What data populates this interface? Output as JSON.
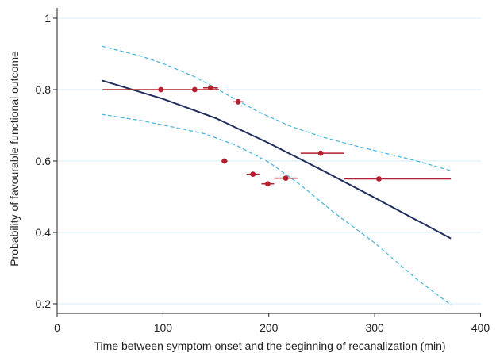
{
  "chart_data": {
    "type": "line",
    "xlabel": "Time between symptom onset and the beginning of recanalization (min)",
    "ylabel": "Probability of favourable functional outcome",
    "xlim": [
      0,
      410
    ],
    "ylim": [
      0.18,
      1.02
    ],
    "x_ticks": [
      0,
      100,
      200,
      300,
      400
    ],
    "y_ticks": [
      0.2,
      0.4,
      0.6,
      0.8,
      1
    ],
    "x_tick_labels": [
      "0",
      "100",
      "200",
      "300",
      "400"
    ],
    "y_tick_labels": [
      "0.2",
      "0.4",
      "0.6",
      "0.8",
      "1"
    ],
    "grid": "horizontal",
    "series": [
      {
        "role": "fitted",
        "color": "#1f2d5c",
        "style": "solid",
        "points": [
          [
            42,
            0.826
          ],
          [
            100,
            0.774
          ],
          [
            150,
            0.72
          ],
          [
            200,
            0.65
          ],
          [
            250,
            0.575
          ],
          [
            300,
            0.497
          ],
          [
            350,
            0.418
          ],
          [
            372,
            0.383
          ]
        ]
      },
      {
        "role": "upper-ci",
        "color": "#4fb8dd",
        "style": "dashed",
        "points": [
          [
            42,
            0.922
          ],
          [
            80,
            0.893
          ],
          [
            100,
            0.873
          ],
          [
            130,
            0.836
          ],
          [
            160,
            0.787
          ],
          [
            190,
            0.738
          ],
          [
            220,
            0.698
          ],
          [
            250,
            0.668
          ],
          [
            280,
            0.644
          ],
          [
            310,
            0.622
          ],
          [
            340,
            0.6
          ],
          [
            372,
            0.573
          ]
        ]
      },
      {
        "role": "lower-ci",
        "color": "#4fb8dd",
        "style": "dashed",
        "points": [
          [
            42,
            0.731
          ],
          [
            80,
            0.713
          ],
          [
            110,
            0.695
          ],
          [
            140,
            0.676
          ],
          [
            170,
            0.643
          ],
          [
            200,
            0.597
          ],
          [
            230,
            0.533
          ],
          [
            260,
            0.459
          ],
          [
            300,
            0.371
          ],
          [
            340,
            0.268
          ],
          [
            372,
            0.197
          ]
        ]
      }
    ],
    "observed": {
      "color": "#b5202e",
      "points": [
        {
          "x": 98,
          "y": 0.8,
          "xerr": [
            43,
            153
          ]
        },
        {
          "x": 130,
          "y": 0.8,
          "xerr": [
            130,
            130
          ]
        },
        {
          "x": 145,
          "y": 0.805,
          "xerr": [
            138,
            152
          ]
        },
        {
          "x": 171,
          "y": 0.766,
          "xerr": [
            166,
            176
          ]
        },
        {
          "x": 158,
          "y": 0.6,
          "xerr": [
            155,
            161
          ]
        },
        {
          "x": 185,
          "y": 0.563,
          "xerr": [
            179,
            191
          ]
        },
        {
          "x": 199,
          "y": 0.536,
          "xerr": [
            193,
            205
          ]
        },
        {
          "x": 216,
          "y": 0.552,
          "xerr": [
            205,
            227
          ]
        },
        {
          "x": 249,
          "y": 0.622,
          "xerr": [
            230,
            271
          ]
        },
        {
          "x": 304,
          "y": 0.55,
          "xerr": [
            271,
            372
          ]
        }
      ]
    }
  }
}
